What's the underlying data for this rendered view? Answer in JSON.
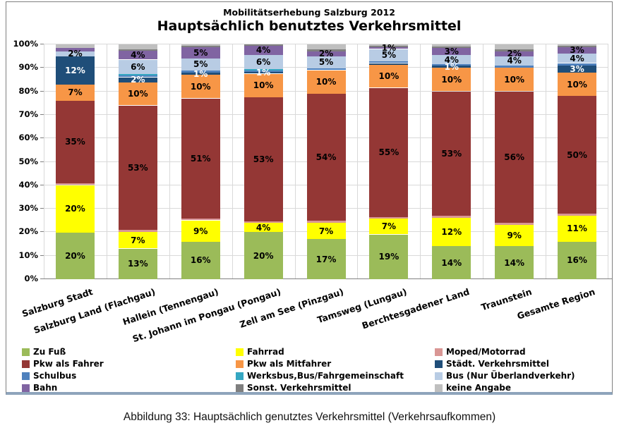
{
  "header": {
    "subtitle": "Mobilitätserhebung Salzburg 2012",
    "title": "Hauptsächlich benutztes Verkehrsmittel"
  },
  "caption": "Abbildung 33: Hauptsächlich genutztes Verkehrsmittel (Verkehrsaufkommen)",
  "chart_data": {
    "type": "bar",
    "stacked": true,
    "subtitle": "Mobilitätserhebung Salzburg 2012",
    "title": "Hauptsächlich benutztes Verkehrsmittel",
    "ylim": [
      0,
      100
    ],
    "ytick_labels": [
      "0%",
      "10%",
      "20%",
      "30%",
      "40%",
      "50%",
      "60%",
      "70%",
      "80%",
      "90%",
      "100%"
    ],
    "grid": true,
    "legend_position": "bottom",
    "categories": [
      "Salzburg Stadt",
      "Salzburg Land (Flachgau)",
      "Hallein (Tennengau)",
      "St. Johann im Pongau (Pongau)",
      "Zell am See (Pinzgau)",
      "Tamsweg (Lungau)",
      "Berchtesgadener Land",
      "Traunstein",
      "Gesamte Region"
    ],
    "series": [
      {
        "name": "Zu Fuß",
        "color": "#9bbb59",
        "text_color": "#000000",
        "values": [
          20,
          13,
          16,
          20,
          17,
          19,
          14,
          14,
          16
        ],
        "labels": [
          "20%",
          "13%",
          "16%",
          "20%",
          "17%",
          "19%",
          "14%",
          "14%",
          "16%"
        ]
      },
      {
        "name": "Fahrrad",
        "color": "#ffff00",
        "text_color": "#000000",
        "values": [
          20,
          7,
          9,
          4,
          7,
          7,
          12,
          9,
          11
        ],
        "labels": [
          "20%",
          "7%",
          "9%",
          "4%",
          "7%",
          "7%",
          "12%",
          "9%",
          "11%"
        ]
      },
      {
        "name": "Moped/Motorrad",
        "color": "#d99694",
        "text_color": "#000000",
        "values": [
          1,
          1,
          1,
          0.5,
          1,
          0.5,
          1,
          1,
          1
        ],
        "labels": [
          "",
          "",
          "",
          "",
          "",
          "",
          "",
          "",
          ""
        ]
      },
      {
        "name": "Pkw als Fahrer",
        "color": "#943735",
        "text_color": "#000000",
        "values": [
          35,
          53,
          51,
          53,
          54,
          55,
          53,
          56,
          50
        ],
        "labels": [
          "35%",
          "53%",
          "51%",
          "53%",
          "54%",
          "55%",
          "53%",
          "56%",
          "50%"
        ]
      },
      {
        "name": "Pkw als Mitfahrer",
        "color": "#f79646",
        "text_color": "#000000",
        "values": [
          7,
          10,
          10,
          10,
          10,
          10,
          10,
          10,
          10
        ],
        "labels": [
          "7%",
          "10%",
          "10%",
          "10%",
          "10%",
          "10%",
          "10%",
          "10%",
          "10%"
        ]
      },
      {
        "name": "Städt. Verkehrsmittel",
        "color": "#1f4e79",
        "text_color": "#ffffff",
        "values": [
          12,
          2,
          1,
          1,
          0,
          0.5,
          1,
          0,
          3
        ],
        "labels": [
          "12%",
          "2%",
          "1%",
          "1%",
          "",
          "",
          "1%",
          "",
          "3%"
        ]
      },
      {
        "name": "Schulbus",
        "color": "#4f81bd",
        "text_color": "#000000",
        "values": [
          0,
          1,
          1,
          0.5,
          1,
          1,
          0.5,
          1,
          1
        ],
        "labels": [
          "",
          "",
          "",
          "",
          "",
          "",
          "",
          "",
          ""
        ]
      },
      {
        "name": "Werksbus,Bus/Fahrgemeinschaft",
        "color": "#35a7c2",
        "text_color": "#000000",
        "values": [
          0,
          0.5,
          0,
          0.5,
          0,
          0,
          0,
          0,
          0
        ],
        "labels": [
          "",
          "",
          "",
          "",
          "",
          "",
          "",
          "",
          ""
        ]
      },
      {
        "name": "Bus (Nur Überlandverkehr)",
        "color": "#b8cce4",
        "text_color": "#000000",
        "values": [
          2,
          6,
          5,
          6,
          5,
          5,
          4,
          4,
          4
        ],
        "labels": [
          "2%",
          "6%",
          "5%",
          "6%",
          "5%",
          "5%",
          "4%",
          "4%",
          "4%"
        ]
      },
      {
        "name": "Bahn",
        "color": "#8064a2",
        "text_color": "#000000",
        "values": [
          1.5,
          4,
          5,
          4,
          2,
          1,
          3,
          2,
          3
        ],
        "labels": [
          "",
          "4%",
          "5%",
          "4%",
          "2%",
          "1%",
          "3%",
          "2%",
          "3%"
        ]
      },
      {
        "name": "Sonst. Verkehrsmittel",
        "color": "#7f7f7f",
        "text_color": "#000000",
        "values": [
          0,
          0.5,
          0.5,
          0.5,
          1,
          0.5,
          0.5,
          1,
          0.5
        ],
        "labels": [
          "",
          "",
          "",
          "",
          "",
          "",
          "",
          "",
          ""
        ]
      },
      {
        "name": "keine Angabe",
        "color": "#bfbfbf",
        "text_color": "#000000",
        "values": [
          1.5,
          2,
          0.5,
          0,
          2,
          0.5,
          1,
          2,
          0.5
        ],
        "labels": [
          "",
          "",
          "",
          "",
          "",
          "",
          "",
          "",
          ""
        ]
      }
    ]
  }
}
